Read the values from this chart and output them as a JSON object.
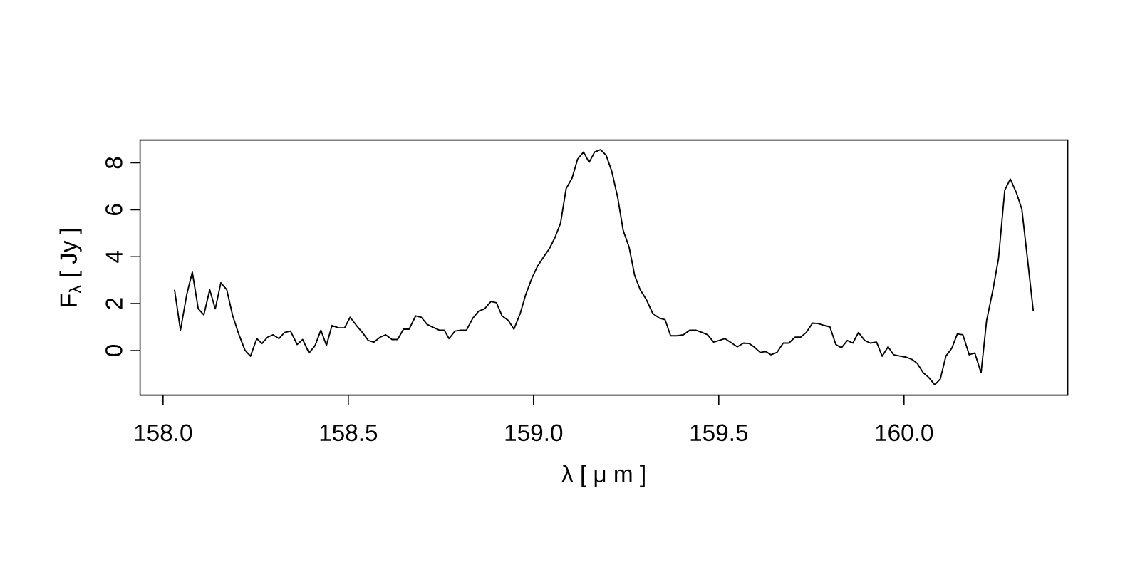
{
  "chart_data": {
    "type": "line",
    "xlabel": "λ [ μ m ]",
    "ylabel": "F$_{λ}$ [ Jy ]",
    "xlim": [
      157.938,
      160.442
    ],
    "ylim": [
      -1.9,
      8.97
    ],
    "xticks": [
      {
        "value": 158.0,
        "label": "158.0"
      },
      {
        "value": 158.5,
        "label": "158.5"
      },
      {
        "value": 159.0,
        "label": "159.0"
      },
      {
        "value": 159.5,
        "label": "159.5"
      },
      {
        "value": 160.0,
        "label": "160.0"
      }
    ],
    "yticks": [
      0,
      2,
      4,
      6,
      8
    ],
    "x": [
      158.031,
      158.047,
      158.064,
      158.079,
      158.095,
      158.11,
      158.126,
      158.141,
      158.156,
      158.172,
      158.188,
      158.205,
      158.221,
      158.236,
      158.253,
      158.267,
      158.282,
      158.297,
      158.313,
      158.328,
      158.344,
      158.362,
      158.377,
      158.394,
      158.41,
      158.426,
      158.441,
      158.456,
      158.474,
      158.49,
      158.505,
      158.522,
      158.538,
      158.554,
      158.569,
      158.586,
      158.601,
      158.618,
      158.633,
      158.649,
      158.664,
      158.682,
      158.697,
      158.713,
      158.729,
      158.746,
      158.759,
      158.772,
      158.788,
      158.804,
      158.819,
      158.836,
      158.852,
      158.868,
      158.885,
      158.9,
      158.915,
      158.932,
      158.947,
      158.964,
      158.979,
      158.996,
      159.011,
      159.028,
      159.043,
      159.058,
      159.073,
      159.088,
      159.104,
      159.119,
      159.135,
      159.15,
      159.165,
      159.181,
      159.196,
      159.211,
      159.227,
      159.242,
      159.258,
      159.273,
      159.288,
      159.304,
      159.322,
      159.34,
      159.355,
      159.37,
      159.387,
      159.404,
      159.422,
      159.438,
      159.455,
      159.47,
      159.486,
      159.501,
      159.517,
      159.535,
      159.55,
      159.567,
      159.582,
      159.595,
      159.612,
      159.627,
      159.641,
      159.657,
      159.674,
      159.689,
      159.706,
      159.721,
      159.736,
      159.753,
      159.768,
      159.785,
      159.8,
      159.816,
      159.831,
      159.847,
      159.862,
      159.877,
      159.894,
      159.909,
      159.926,
      159.941,
      159.957,
      159.972,
      159.99,
      160.006,
      160.022,
      160.036,
      160.052,
      160.067,
      160.083,
      160.098,
      160.113,
      160.129,
      160.144,
      160.159,
      160.176,
      160.191,
      160.208,
      160.223,
      160.24,
      160.255,
      160.272,
      160.287,
      160.303,
      160.318,
      160.334,
      160.349
    ],
    "series": [
      {
        "color": "#000000",
        "values": [
          2.59,
          0.87,
          2.39,
          3.34,
          1.78,
          1.52,
          2.59,
          1.78,
          2.89,
          2.59,
          1.48,
          0.67,
          0.02,
          -0.24,
          0.51,
          0.3,
          0.57,
          0.67,
          0.51,
          0.77,
          0.83,
          0.26,
          0.47,
          -0.1,
          0.2,
          0.87,
          0.22,
          1.07,
          0.97,
          0.97,
          1.42,
          1.07,
          0.77,
          0.43,
          0.36,
          0.57,
          0.67,
          0.47,
          0.47,
          0.91,
          0.91,
          1.48,
          1.42,
          1.11,
          0.99,
          0.87,
          0.87,
          0.51,
          0.83,
          0.87,
          0.87,
          1.38,
          1.68,
          1.78,
          2.09,
          2.04,
          1.48,
          1.28,
          0.91,
          1.58,
          2.39,
          3.1,
          3.6,
          4.01,
          4.35,
          4.82,
          5.43,
          6.9,
          7.35,
          8.16,
          8.46,
          8.02,
          8.46,
          8.56,
          8.32,
          7.65,
          6.54,
          5.12,
          4.41,
          3.2,
          2.59,
          2.19,
          1.58,
          1.38,
          1.32,
          0.63,
          0.63,
          0.67,
          0.87,
          0.87,
          0.77,
          0.67,
          0.36,
          0.43,
          0.51,
          0.32,
          0.16,
          0.32,
          0.3,
          0.16,
          -0.08,
          -0.04,
          -0.18,
          -0.08,
          0.32,
          0.32,
          0.57,
          0.57,
          0.77,
          1.17,
          1.15,
          1.07,
          1.01,
          0.26,
          0.12,
          0.43,
          0.32,
          0.77,
          0.43,
          0.32,
          0.36,
          -0.24,
          0.16,
          -0.18,
          -0.24,
          -0.28,
          -0.38,
          -0.55,
          -0.95,
          -1.15,
          -1.46,
          -1.21,
          -0.24,
          0.1,
          0.71,
          0.67,
          -0.18,
          -0.1,
          -0.95,
          1.28,
          2.59,
          3.91,
          6.84,
          7.31,
          6.74,
          6.03,
          3.81,
          1.68
        ]
      }
    ]
  }
}
